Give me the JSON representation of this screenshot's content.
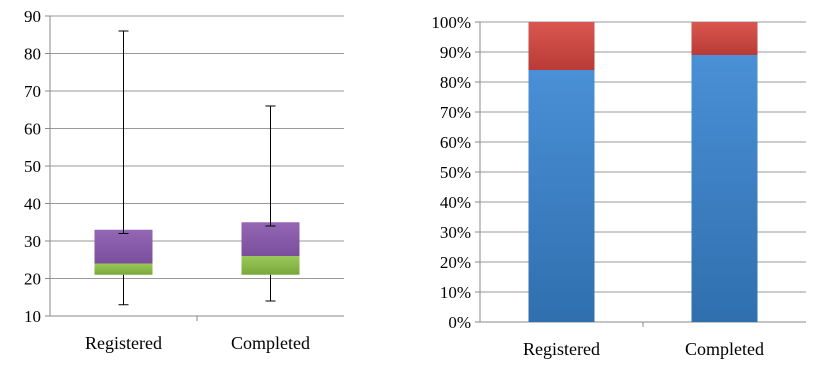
{
  "chart_data": [
    {
      "type": "box",
      "categories": [
        "Registered",
        "Completed"
      ],
      "ylim": [
        10,
        90
      ],
      "yticks": [
        "10",
        "20",
        "30",
        "40",
        "50",
        "60",
        "70",
        "80",
        "90"
      ],
      "grid": true,
      "boxes": [
        {
          "category": "Registered",
          "min": 13,
          "q1": 21,
          "median": 24,
          "q3": 33,
          "max": 86,
          "whisker_cap_low": 32
        },
        {
          "category": "Completed",
          "min": 14,
          "q1": 21,
          "median": 26,
          "q3": 35,
          "max": 66,
          "whisker_cap_low": 34
        }
      ],
      "colors": {
        "lower_box": "#8db94a",
        "upper_box": "#8a5aa8"
      }
    },
    {
      "type": "bar",
      "stacked": "percent",
      "categories": [
        "Registered",
        "Completed"
      ],
      "ylim": [
        0,
        100
      ],
      "yticks": [
        "0%",
        "10%",
        "20%",
        "30%",
        "40%",
        "50%",
        "60%",
        "70%",
        "80%",
        "90%",
        "100%"
      ],
      "grid": true,
      "series": [
        {
          "values": [
            84,
            89
          ],
          "color": "#3f82c8"
        },
        {
          "values": [
            16,
            11
          ],
          "color": "#cf4a44"
        }
      ]
    }
  ]
}
